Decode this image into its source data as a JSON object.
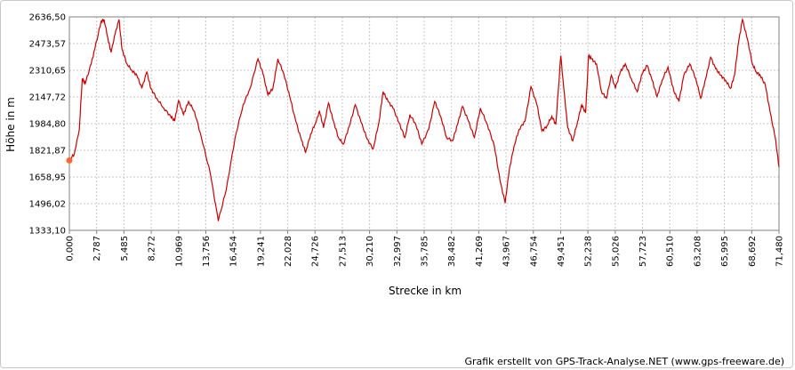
{
  "chart_data": {
    "type": "line",
    "title": "",
    "xlabel": "Strecke  in  km",
    "ylabel": "Höhe  in  m",
    "xlim": [
      0,
      71.48
    ],
    "ylim": [
      1333.1,
      2636.5
    ],
    "x_ticks": [
      "0,000",
      "2,787",
      "5,485",
      "8,272",
      "10,969",
      "13,756",
      "16,454",
      "19,241",
      "22,028",
      "24,726",
      "27,513",
      "30,210",
      "32,997",
      "35,785",
      "38,482",
      "41,269",
      "43,967",
      "46,754",
      "49,451",
      "52,238",
      "55,026",
      "57,723",
      "60,510",
      "63,208",
      "65,995",
      "68,692",
      "71,480"
    ],
    "y_ticks": [
      "1333,10",
      "1496,02",
      "1658,95",
      "1821,87",
      "1984,80",
      "2147,72",
      "2310,65",
      "2473,57",
      "2636,50"
    ],
    "grid": true,
    "line_color": "#cc0000",
    "start_marker_color": "#ff6633",
    "series": [
      {
        "x": [
          0,
          0.5,
          1.0,
          1.3,
          1.6,
          2.2,
          2.6,
          3.2,
          3.5,
          3.9,
          4.2,
          4.6,
          5.0,
          5.3,
          5.8,
          6.3,
          6.8,
          7.3,
          7.8,
          8.2,
          8.8,
          9.5,
          10.2,
          10.6,
          11.0,
          11.5,
          12.0,
          12.6,
          13.3,
          14.2,
          15.0,
          15.8,
          16.7,
          17.5,
          18.2,
          19.0,
          19.5,
          20.0,
          20.5,
          21.0,
          21.6,
          22.2,
          22.8,
          23.4,
          23.8,
          24.3,
          24.8,
          25.2,
          25.6,
          26.1,
          26.6,
          27.1,
          27.6,
          28.2,
          28.8,
          29.4,
          30.0,
          30.6,
          31.2,
          31.6,
          32.1,
          32.6,
          33.2,
          33.8,
          34.3,
          34.9,
          35.5,
          36.2,
          36.8,
          37.4,
          38.0,
          38.6,
          39.1,
          39.6,
          40.2,
          40.8,
          41.4,
          42.1,
          42.8,
          43.4,
          43.9,
          44.3,
          44.8,
          45.3,
          45.9,
          46.5,
          47.1,
          47.6,
          48.1,
          48.6,
          49.0,
          49.5,
          49.8,
          50.2,
          50.7,
          51.2,
          51.6,
          52.0,
          52.3,
          52.6,
          53.1,
          53.6,
          54.1,
          54.6,
          55.0,
          55.5,
          56.0,
          56.6,
          57.2,
          57.7,
          58.2,
          58.7,
          59.2,
          59.7,
          60.3,
          60.9,
          61.4,
          61.9,
          62.5,
          63.1,
          63.6,
          64.1,
          64.6,
          65.1,
          65.6,
          66.1,
          66.6,
          67.0,
          67.4,
          67.8,
          68.3,
          68.8,
          69.2,
          69.6,
          70.1,
          70.6,
          71.1,
          71.48
        ],
        "y": [
          1760,
          1800,
          1950,
          2260,
          2230,
          2350,
          2450,
          2610,
          2620,
          2500,
          2420,
          2530,
          2620,
          2440,
          2350,
          2310,
          2280,
          2200,
          2300,
          2200,
          2140,
          2080,
          2030,
          2000,
          2125,
          2040,
          2120,
          2060,
          1900,
          1680,
          1390,
          1580,
          1900,
          2100,
          2200,
          2380,
          2290,
          2160,
          2200,
          2380,
          2290,
          2150,
          2000,
          1880,
          1810,
          1920,
          1990,
          2060,
          1960,
          2110,
          2000,
          1900,
          1860,
          1970,
          2100,
          1990,
          1890,
          1830,
          2000,
          2180,
          2120,
          2080,
          1990,
          1900,
          2040,
          1980,
          1860,
          1950,
          2120,
          2030,
          1900,
          1880,
          1980,
          2090,
          2000,
          1900,
          2080,
          1980,
          1850,
          1630,
          1500,
          1700,
          1850,
          1950,
          2000,
          2210,
          2100,
          1940,
          1970,
          2030,
          1980,
          2400,
          2200,
          1960,
          1880,
          2000,
          2100,
          2050,
          2400,
          2380,
          2350,
          2180,
          2140,
          2280,
          2200,
          2300,
          2350,
          2260,
          2180,
          2290,
          2340,
          2250,
          2150,
          2250,
          2330,
          2180,
          2120,
          2280,
          2350,
          2260,
          2140,
          2260,
          2390,
          2320,
          2280,
          2250,
          2200,
          2280,
          2480,
          2620,
          2500,
          2350,
          2300,
          2280,
          2220,
          2050,
          1900,
          1720
        ]
      }
    ]
  },
  "footer": {
    "credit": "Grafik erstellt von GPS-Track-Analyse.NET (www.gps-freeware.de)"
  }
}
